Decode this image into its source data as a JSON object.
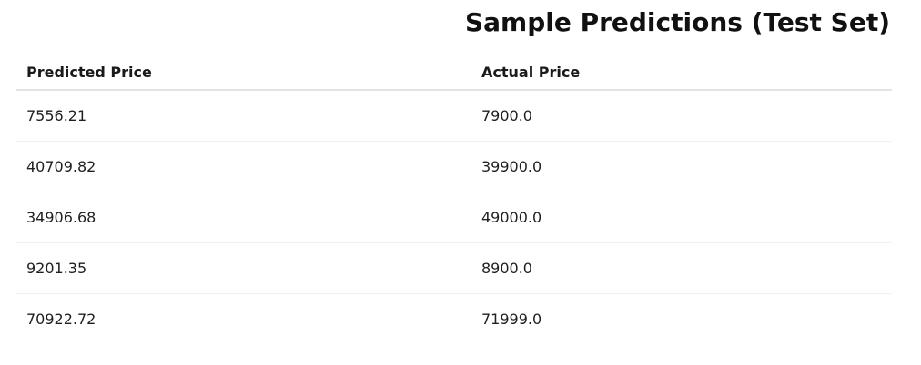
{
  "title": "Sample Predictions (Test Set)",
  "table": {
    "columns": [
      "Predicted Price",
      "Actual Price"
    ],
    "rows": [
      [
        "7556.21",
        "7900.0"
      ],
      [
        "40709.82",
        "39900.0"
      ],
      [
        "34906.68",
        "49000.0"
      ],
      [
        "9201.35",
        "8900.0"
      ],
      [
        "70922.72",
        "71999.0"
      ]
    ]
  }
}
